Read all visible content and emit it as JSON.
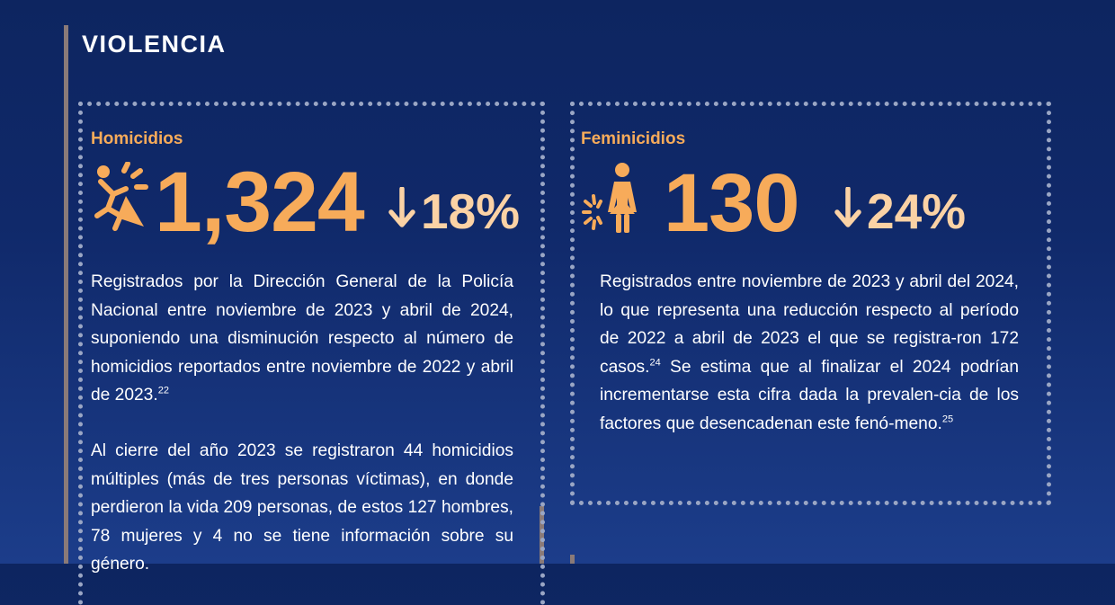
{
  "section": {
    "title": "VIOLENCIA"
  },
  "homicidios": {
    "label": "Homicidios",
    "value": "1,324",
    "change": "18%",
    "change_direction": "down",
    "p1": "Registrados por la Dirección General de la Policía Nacional entre noviembre de 2023 y abril de 2024, suponiendo una disminución respecto al número de homicidios reportados entre noviembre de 2022 y abril de 2023.",
    "p1_ref": "22",
    "p2": "Al cierre del año 2023 se registraron 44 homicidios múltiples (más de tres personas víctimas), en donde perdieron la vida 209 personas, de estos 127 hombres, 78 mujeres y 4 no se tiene información sobre su género."
  },
  "feminicidios": {
    "label": "Feminicidios",
    "value": "130",
    "change": "24%",
    "change_direction": "down",
    "p1a": "Registrados entre noviembre de 2023 y abril del 2024, lo que representa una reducción respecto al período de 2022 a abril de 2023 el que se registra-ron 172 casos.",
    "p1a_ref": "24",
    "p1b": " Se estima que al finalizar el 2024 podrían incrementarse esta cifra dada la prevalen-cia de los factores que desencadenan este fenó-meno.",
    "p1b_ref": "25"
  },
  "colors": {
    "accent": "#f7ab5a",
    "accent_light": "#fbd2a5",
    "background": "#10296a",
    "border": "#9aa6c4"
  },
  "icons": {
    "homicidios": "falling-person-icon",
    "feminicidios": "woman-figure-icon",
    "arrow": "arrow-down-icon"
  }
}
